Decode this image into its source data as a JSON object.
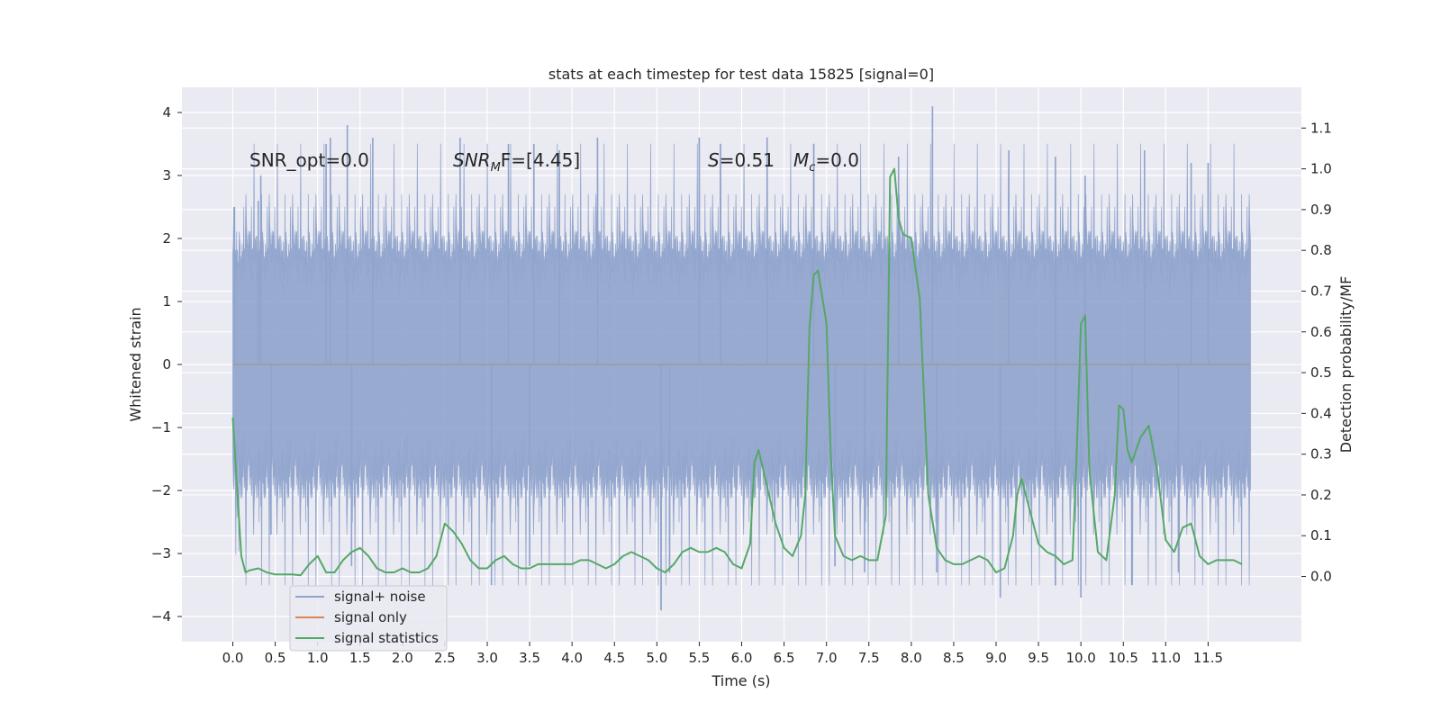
{
  "chart_data": {
    "type": "line",
    "title": "stats at each timestep for test data 15825 [signal=0]",
    "xlabel": "Time (s)",
    "ylabel_left": "Whitened strain",
    "ylabel_right": "Detection probability/MF",
    "xlim": [
      -0.6,
      12.6
    ],
    "ylim_left": [
      -4.4,
      4.4
    ],
    "ylim_right": [
      -0.16,
      1.2
    ],
    "x_ticks": [
      "0.0",
      "0.5",
      "1.0",
      "1.5",
      "2.0",
      "2.5",
      "3.0",
      "3.5",
      "4.0",
      "4.5",
      "5.0",
      "5.5",
      "6.0",
      "6.5",
      "7.0",
      "7.5",
      "8.0",
      "8.5",
      "9.0",
      "9.5",
      "10.0",
      "10.5",
      "11.0",
      "11.5"
    ],
    "y_left_ticks": [
      "4",
      "3",
      "2",
      "1",
      "0",
      "−1",
      "−2",
      "−3",
      "−4"
    ],
    "y_right_ticks": [
      "1.1",
      "1.0",
      "0.9",
      "0.8",
      "0.7",
      "0.6",
      "0.5",
      "0.4",
      "0.3",
      "0.2",
      "0.1",
      "0.0"
    ],
    "grid": true,
    "legend_position": "bottom-left",
    "annotations": {
      "snr_opt": "SNR_opt=0.0",
      "snr_mf_base": "SNR",
      "snr_mf_sub": "M",
      "snr_mf_rest": "F=[4.45]",
      "s_label": "S",
      "s_value": "=0.51",
      "mc_label": "M",
      "mc_sub": "c",
      "mc_value": "=0.0"
    },
    "series": [
      {
        "name": "signal+ noise",
        "color": "#8fa3cc",
        "axis": "left",
        "description": "whitened noise, approx |y| envelope 1.5-2.5 with spikes",
        "x_range": [
          0.0,
          12.0
        ],
        "spikes_top": [
          [
            0.02,
            2.5
          ],
          [
            0.3,
            2.6
          ],
          [
            0.33,
            3.0
          ],
          [
            1.1,
            3.5
          ],
          [
            1.15,
            3.6
          ],
          [
            1.35,
            3.8
          ],
          [
            1.65,
            3.6
          ],
          [
            2.68,
            3.6
          ],
          [
            3.25,
            3.5
          ],
          [
            3.55,
            3.5
          ],
          [
            3.85,
            3.4
          ],
          [
            4.3,
            3.6
          ],
          [
            5.5,
            3.6
          ],
          [
            5.75,
            3.5
          ],
          [
            6.3,
            3.6
          ],
          [
            6.85,
            3.5
          ],
          [
            7.85,
            3.3
          ],
          [
            8.25,
            4.1
          ],
          [
            9.15,
            3.4
          ],
          [
            9.7,
            3.3
          ],
          [
            10.05,
            3.0
          ],
          [
            10.75,
            3.4
          ],
          [
            11.3,
            3.2
          ],
          [
            11.5,
            3.2
          ]
        ],
        "spikes_bottom": [
          [
            0.45,
            -2.7
          ],
          [
            1.4,
            -3.2
          ],
          [
            3.05,
            -3.5
          ],
          [
            3.5,
            -3.2
          ],
          [
            5.05,
            -3.9
          ],
          [
            5.15,
            -3.3
          ],
          [
            7.1,
            -3.2
          ],
          [
            7.45,
            -3.3
          ],
          [
            8.3,
            -3.3
          ],
          [
            9.05,
            -3.7
          ],
          [
            9.7,
            -3.5
          ],
          [
            10.0,
            -3.7
          ],
          [
            10.6,
            -3.5
          ],
          [
            11.15,
            -3.3
          ]
        ]
      },
      {
        "name": "signal only",
        "color": "#dd8452",
        "axis": "left",
        "x": [
          0.0,
          12.0
        ],
        "y": [
          0.0,
          0.0
        ]
      },
      {
        "name": "signal statistics",
        "color": "#55a868",
        "axis": "right",
        "x": [
          0.0,
          0.1,
          0.15,
          0.2,
          0.3,
          0.4,
          0.5,
          0.6,
          0.7,
          0.8,
          0.9,
          1.0,
          1.05,
          1.1,
          1.2,
          1.3,
          1.4,
          1.5,
          1.6,
          1.7,
          1.8,
          1.9,
          2.0,
          2.1,
          2.2,
          2.3,
          2.4,
          2.5,
          2.6,
          2.7,
          2.8,
          2.9,
          3.0,
          3.1,
          3.2,
          3.3,
          3.4,
          3.5,
          3.6,
          3.7,
          3.8,
          3.9,
          4.0,
          4.1,
          4.2,
          4.3,
          4.4,
          4.5,
          4.6,
          4.7,
          4.8,
          4.9,
          5.0,
          5.1,
          5.2,
          5.3,
          5.4,
          5.5,
          5.6,
          5.7,
          5.8,
          5.9,
          6.0,
          6.1,
          6.15,
          6.2,
          6.3,
          6.4,
          6.5,
          6.6,
          6.7,
          6.75,
          6.8,
          6.85,
          6.9,
          7.0,
          7.05,
          7.1,
          7.2,
          7.3,
          7.4,
          7.5,
          7.6,
          7.7,
          7.75,
          7.8,
          7.85,
          7.9,
          8.0,
          8.1,
          8.2,
          8.3,
          8.4,
          8.5,
          8.6,
          8.7,
          8.8,
          8.9,
          9.0,
          9.1,
          9.2,
          9.25,
          9.3,
          9.4,
          9.5,
          9.6,
          9.7,
          9.8,
          9.9,
          9.95,
          10.0,
          10.05,
          10.1,
          10.2,
          10.3,
          10.4,
          10.45,
          10.5,
          10.55,
          10.6,
          10.7,
          10.8,
          10.9,
          11.0,
          11.1,
          11.2,
          11.3,
          11.4,
          11.5,
          11.6,
          11.7,
          11.8,
          11.9
        ],
        "y": [
          0.39,
          0.05,
          0.01,
          0.015,
          0.02,
          0.01,
          0.005,
          0.005,
          0.005,
          0.003,
          0.03,
          0.05,
          0.03,
          0.01,
          0.01,
          0.04,
          0.06,
          0.07,
          0.05,
          0.02,
          0.01,
          0.01,
          0.02,
          0.01,
          0.01,
          0.02,
          0.05,
          0.13,
          0.11,
          0.08,
          0.04,
          0.02,
          0.02,
          0.04,
          0.05,
          0.03,
          0.02,
          0.02,
          0.03,
          0.03,
          0.03,
          0.03,
          0.03,
          0.04,
          0.04,
          0.03,
          0.02,
          0.03,
          0.05,
          0.06,
          0.05,
          0.04,
          0.02,
          0.01,
          0.03,
          0.06,
          0.07,
          0.06,
          0.06,
          0.07,
          0.06,
          0.03,
          0.02,
          0.08,
          0.28,
          0.31,
          0.22,
          0.13,
          0.07,
          0.05,
          0.1,
          0.2,
          0.61,
          0.74,
          0.75,
          0.62,
          0.3,
          0.1,
          0.05,
          0.04,
          0.05,
          0.04,
          0.04,
          0.15,
          0.98,
          1.0,
          0.88,
          0.84,
          0.83,
          0.68,
          0.2,
          0.07,
          0.04,
          0.03,
          0.03,
          0.04,
          0.05,
          0.04,
          0.01,
          0.02,
          0.1,
          0.2,
          0.24,
          0.16,
          0.08,
          0.06,
          0.05,
          0.03,
          0.04,
          0.3,
          0.62,
          0.64,
          0.26,
          0.06,
          0.04,
          0.2,
          0.42,
          0.41,
          0.31,
          0.28,
          0.34,
          0.37,
          0.26,
          0.09,
          0.06,
          0.12,
          0.13,
          0.05,
          0.03,
          0.04,
          0.04,
          0.04,
          0.03
        ]
      }
    ]
  }
}
